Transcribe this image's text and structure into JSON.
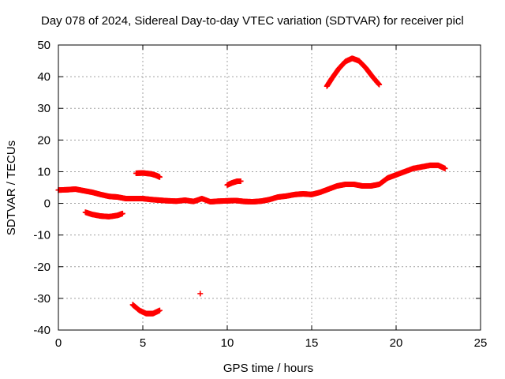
{
  "chart_data": {
    "type": "scatter",
    "title": "Day 078 of 2024, Sidereal Day-to-day VTEC variation (SDTVAR) for receiver picl",
    "xlabel": "GPS time / hours",
    "ylabel": "SDTVAR / TECUs",
    "xlim": [
      0,
      25
    ],
    "ylim": [
      -40,
      50
    ],
    "xticks": [
      "0",
      "5",
      "10",
      "15",
      "20",
      "25"
    ],
    "yticks": [
      "-40",
      "-30",
      "-20",
      "-10",
      "0",
      "10",
      "20",
      "30",
      "40",
      "50"
    ],
    "grid": true,
    "marker": "+",
    "color": "#ff0000",
    "series": [
      {
        "name": "main-band",
        "x": [
          0.0,
          0.5,
          1.0,
          1.5,
          2.0,
          2.5,
          3.0,
          3.5,
          4.0,
          4.5,
          5.0,
          5.5,
          6.0,
          6.5,
          7.0,
          7.5,
          8.0,
          8.5,
          9.0,
          9.5,
          10.0,
          10.5,
          11.0,
          11.5,
          12.0,
          12.5,
          13.0,
          13.5,
          14.0,
          14.5,
          15.0,
          15.5,
          16.0,
          16.5,
          17.0,
          17.5,
          18.0,
          18.5,
          19.0,
          19.5,
          20.0,
          20.5,
          21.0,
          21.5,
          22.0,
          22.5,
          22.9
        ],
        "y": [
          4.2,
          4.3,
          4.5,
          4.0,
          3.5,
          2.8,
          2.2,
          2.0,
          1.5,
          1.5,
          1.5,
          1.2,
          1.0,
          0.8,
          0.7,
          1.0,
          0.6,
          1.5,
          0.5,
          0.7,
          0.8,
          0.9,
          0.6,
          0.5,
          0.7,
          1.2,
          2.0,
          2.3,
          2.8,
          3.0,
          2.8,
          3.5,
          4.5,
          5.5,
          6.0,
          6.0,
          5.5,
          5.5,
          6.0,
          8.0,
          9.0,
          10.0,
          11.0,
          11.5,
          12.0,
          12.0,
          11.0
        ]
      },
      {
        "name": "segment-a",
        "x": [
          1.6,
          2.0,
          2.5,
          3.0,
          3.5,
          3.8
        ],
        "y": [
          -2.8,
          -3.5,
          -4.0,
          -4.2,
          -3.8,
          -3.2
        ]
      },
      {
        "name": "segment-b",
        "x": [
          4.6,
          5.0,
          5.5,
          5.8,
          6.0
        ],
        "y": [
          9.5,
          9.6,
          9.3,
          8.8,
          8.3
        ]
      },
      {
        "name": "segment-c",
        "x": [
          10.0,
          10.3,
          10.6,
          10.8
        ],
        "y": [
          5.8,
          6.5,
          7.0,
          7.0
        ]
      },
      {
        "name": "segment-d",
        "x": [
          15.9,
          16.2,
          16.6,
          17.0,
          17.4,
          17.8,
          18.2,
          18.6,
          19.0
        ],
        "y": [
          37.0,
          39.5,
          42.5,
          44.8,
          45.8,
          45.0,
          42.8,
          40.0,
          37.5
        ]
      },
      {
        "name": "segment-e",
        "x": [
          4.4,
          4.8,
          5.2,
          5.6,
          6.0
        ],
        "y": [
          -32.0,
          -33.8,
          -34.8,
          -34.8,
          -33.8
        ]
      },
      {
        "name": "segment-f",
        "x": [
          8.4
        ],
        "y": [
          -28.5
        ]
      }
    ]
  }
}
